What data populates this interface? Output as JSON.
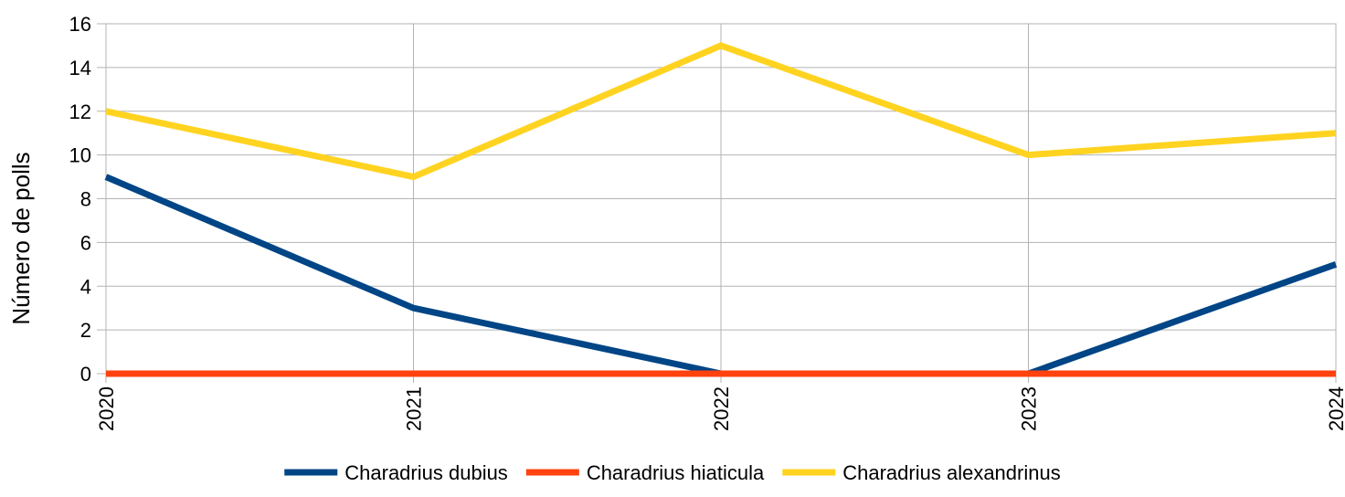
{
  "chart_data": {
    "type": "line",
    "title": "",
    "xlabel": "",
    "ylabel": "Número de polls",
    "x": [
      "2020",
      "2021",
      "2022",
      "2023",
      "2024"
    ],
    "ylim": [
      0,
      16
    ],
    "yticks": [
      0,
      2,
      4,
      6,
      8,
      10,
      12,
      14,
      16
    ],
    "grid": true,
    "legend_position": "bottom",
    "series": [
      {
        "name": "Charadrius dubius",
        "color": "#004586",
        "values": [
          9,
          3,
          0,
          0,
          5
        ]
      },
      {
        "name": "Charadrius hiaticula",
        "color": "#ff420e",
        "values": [
          0,
          0,
          0,
          0,
          0
        ]
      },
      {
        "name": "Charadrius alexandrinus",
        "color": "#ffd320",
        "values": [
          12,
          9,
          15,
          10,
          11
        ]
      }
    ]
  }
}
